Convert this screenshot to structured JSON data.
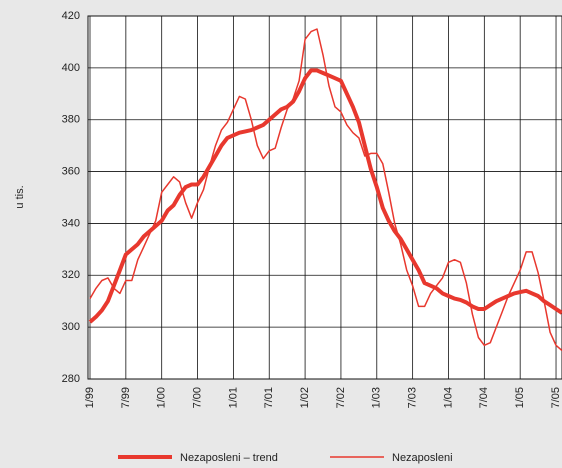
{
  "chart_data": {
    "type": "line",
    "y_label": "u tis.",
    "categories": [
      "1/99",
      null,
      null,
      null,
      null,
      null,
      "7/99",
      null,
      null,
      null,
      null,
      null,
      "1/00",
      null,
      null,
      null,
      null,
      null,
      "7/00",
      null,
      null,
      null,
      null,
      null,
      "1/01",
      null,
      null,
      null,
      null,
      null,
      "7/01",
      null,
      null,
      null,
      null,
      null,
      "1/02",
      null,
      null,
      null,
      null,
      null,
      "7/02",
      null,
      null,
      null,
      null,
      null,
      "1/03",
      null,
      null,
      null,
      null,
      null,
      "7/03",
      null,
      null,
      null,
      null,
      null,
      "1/04",
      null,
      null,
      null,
      null,
      null,
      "7/04",
      null,
      null,
      null,
      null,
      null,
      "1/05",
      null,
      null,
      null,
      null,
      null,
      "7/05",
      null
    ],
    "series": [
      {
        "name": "Nezaposleni – trend",
        "color": "#e8382e",
        "width": 4,
        "values": [
          302,
          304,
          306.5,
          310,
          316,
          322,
          328,
          330,
          332,
          335,
          337,
          339,
          341,
          345,
          347,
          351,
          354,
          355,
          355,
          358,
          362,
          366,
          370,
          373,
          374,
          375,
          375.5,
          376,
          377,
          378,
          380,
          382,
          384,
          385,
          387,
          391,
          396,
          399,
          399,
          398,
          397,
          396,
          395,
          390,
          385,
          379,
          370,
          361,
          354,
          346,
          341,
          337,
          334,
          330,
          326,
          322,
          317,
          316,
          315,
          313,
          312,
          311,
          310.5,
          309.5,
          308,
          307,
          307,
          308.5,
          310,
          311,
          312,
          313,
          313.5,
          314,
          313,
          312,
          310,
          308.5,
          307,
          305.5
        ]
      },
      {
        "name": "Nezaposleni",
        "color": "#e8382e",
        "width": 1.5,
        "values": [
          311,
          315,
          318,
          319,
          315,
          313,
          318,
          318,
          326,
          331,
          336,
          341,
          352,
          355,
          358,
          356,
          348,
          342,
          348,
          353,
          362,
          370,
          376,
          379,
          384,
          389,
          388,
          380,
          370,
          365,
          368,
          369,
          377,
          384,
          388,
          395,
          411,
          414,
          415,
          405,
          393,
          385,
          383,
          378,
          375,
          373,
          366,
          367,
          367,
          363,
          352,
          340,
          332,
          322,
          316,
          308,
          308,
          313,
          316,
          319,
          325,
          326,
          325,
          317,
          305,
          296,
          293,
          294,
          300,
          306,
          312,
          317,
          322,
          329,
          329,
          321,
          310,
          298,
          293,
          291
        ]
      }
    ],
    "ylim": [
      280,
      420
    ],
    "yticks": [
      280,
      300,
      320,
      340,
      360,
      380,
      400,
      420
    ],
    "grid": true
  }
}
